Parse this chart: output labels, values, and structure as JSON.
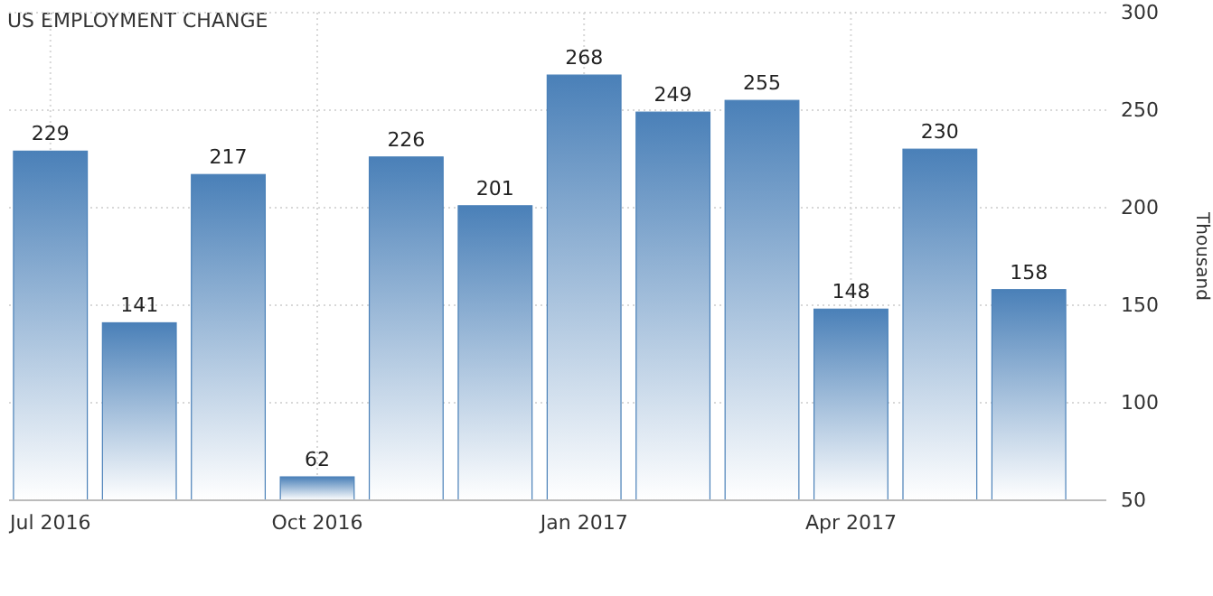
{
  "chart_data": {
    "type": "bar",
    "title": "US EMPLOYMENT CHANGE",
    "ylabel": "Thousand",
    "categories": [
      "Jul 2016",
      null,
      null,
      "Oct 2016",
      null,
      null,
      "Jan 2017",
      null,
      null,
      "Apr 2017",
      null,
      null
    ],
    "values": [
      229,
      141,
      217,
      62,
      226,
      201,
      268,
      249,
      255,
      148,
      230,
      158
    ],
    "color": "#4a80b8",
    "ylim": [
      50,
      300
    ],
    "yticks": [
      50,
      100,
      150,
      200,
      250,
      300
    ],
    "grid": true,
    "data_labels": true
  }
}
